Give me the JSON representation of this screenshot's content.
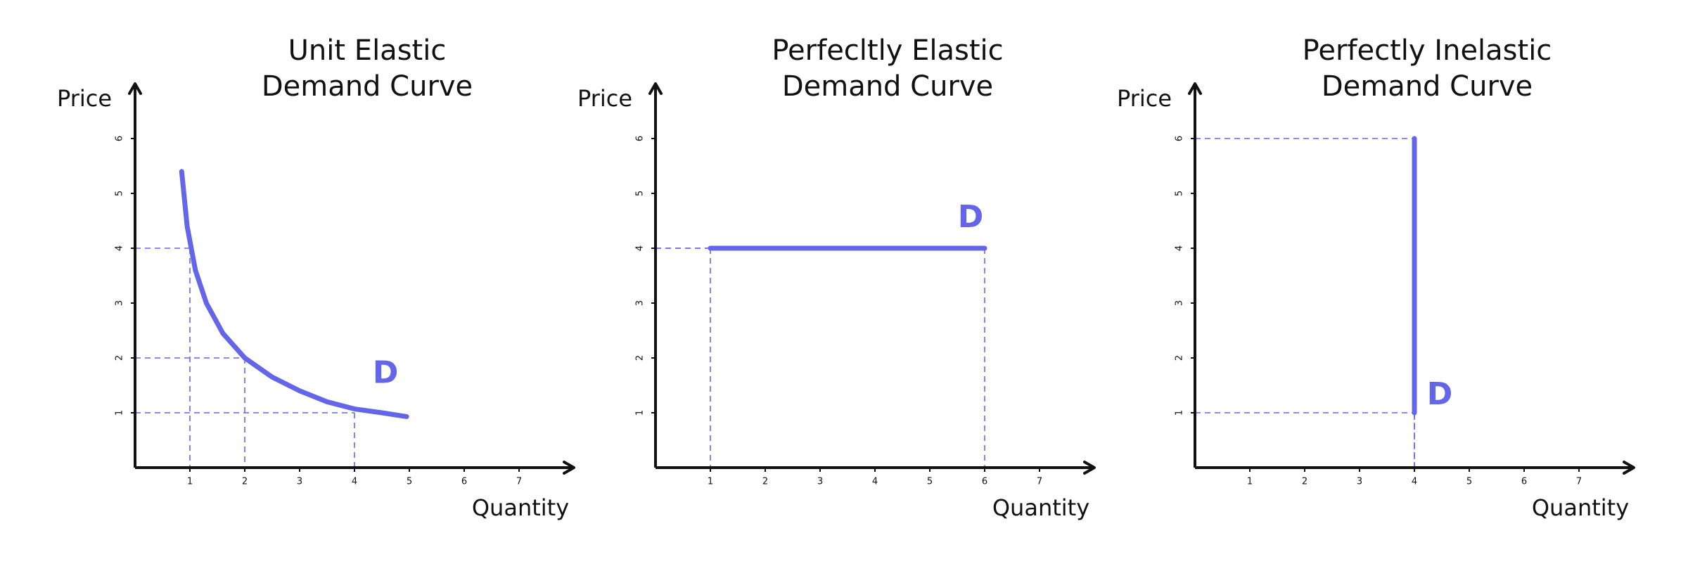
{
  "chart_data": [
    {
      "type": "line",
      "title": [
        "Unit Elastic",
        "Demand Curve"
      ],
      "x_label": "Quantity",
      "y_label": "Price",
      "xlim": [
        0,
        8
      ],
      "ylim": [
        0,
        7
      ],
      "xticks": [
        1,
        2,
        3,
        4,
        5,
        6,
        7
      ],
      "yticks": [
        1,
        2,
        3,
        4,
        5,
        6
      ],
      "series": [
        {
          "name": "D",
          "color": "#6466e9",
          "x": [
            0.85,
            0.95,
            1.1,
            1.3,
            1.6,
            2,
            2.5,
            3,
            3.5,
            4,
            4.5,
            4.95
          ],
          "values": [
            5.4,
            4.4,
            3.6,
            3.0,
            2.45,
            2.0,
            1.65,
            1.4,
            1.2,
            1.07,
            1.0,
            0.93
          ]
        }
      ],
      "guides": [
        {
          "x": 1,
          "y": 4
        },
        {
          "x": 2,
          "y": 2
        },
        {
          "x": 4,
          "y": 1
        }
      ]
    },
    {
      "type": "line",
      "title": [
        "Perfecltly Elastic",
        "Demand Curve"
      ],
      "x_label": "Quantity",
      "y_label": "Price",
      "xlim": [
        0,
        8
      ],
      "ylim": [
        0,
        7
      ],
      "xticks": [
        1,
        2,
        3,
        4,
        5,
        6,
        7
      ],
      "yticks": [
        1,
        2,
        3,
        4,
        5,
        6
      ],
      "series": [
        {
          "name": "D",
          "color": "#6466e9",
          "x": [
            1,
            6
          ],
          "values": [
            4,
            4
          ]
        }
      ],
      "guides": [
        {
          "x": 1,
          "y": 4
        },
        {
          "x": 6,
          "y": 4
        }
      ]
    },
    {
      "type": "line",
      "title": [
        "Perfectly Inelastic",
        "Demand Curve"
      ],
      "x_label": "Quantity",
      "y_label": "Price",
      "xlim": [
        0,
        8
      ],
      "ylim": [
        0,
        7
      ],
      "xticks": [
        1,
        2,
        3,
        4,
        5,
        6,
        7
      ],
      "yticks": [
        1,
        2,
        3,
        4,
        5,
        6
      ],
      "series": [
        {
          "name": "D",
          "color": "#6466e9",
          "x": [
            4,
            4
          ],
          "values": [
            6,
            1
          ]
        }
      ],
      "guides": [
        {
          "x": 4,
          "y": 6
        },
        {
          "x": 4,
          "y": 1
        }
      ]
    }
  ]
}
